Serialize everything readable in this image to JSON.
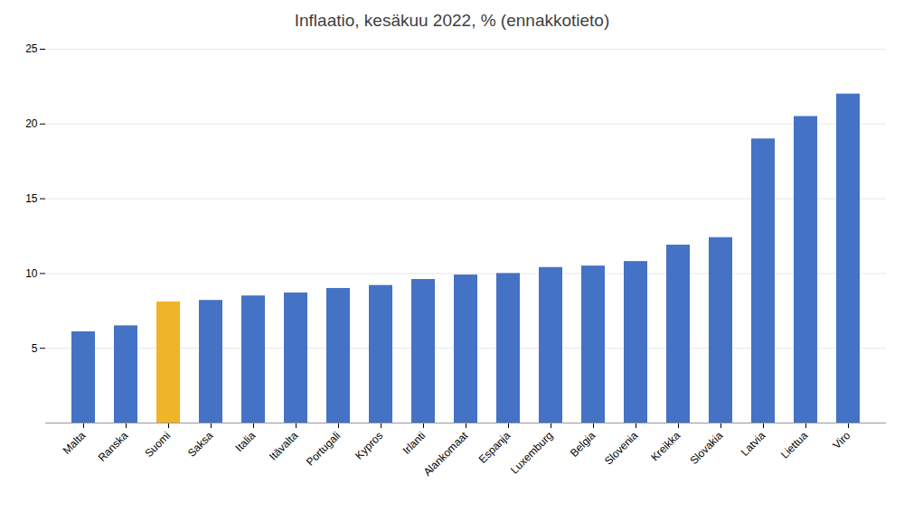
{
  "chart_data": {
    "type": "bar",
    "title": "Inflaatio, kesäkuu 2022, % (ennakkotieto)",
    "categories": [
      "Malta",
      "Ranska",
      "Suomi",
      "Saksa",
      "Italia",
      "Itävalta",
      "Portugali",
      "Kypros",
      "Irlanti",
      "Alankomaat",
      "Espanja",
      "Luxemburg",
      "Belgia",
      "Slovenia",
      "Kreikka",
      "Slovakia",
      "Latvia",
      "Liettua",
      "Viro"
    ],
    "values": [
      6.1,
      6.5,
      8.1,
      8.2,
      8.5,
      8.7,
      9.0,
      9.2,
      9.6,
      9.9,
      10.0,
      10.4,
      10.5,
      10.8,
      11.9,
      12.4,
      19.0,
      20.5,
      22.0
    ],
    "colors": [
      "#4472c4",
      "#4472c4",
      "#f0b428",
      "#4472c4",
      "#4472c4",
      "#4472c4",
      "#4472c4",
      "#4472c4",
      "#4472c4",
      "#4472c4",
      "#4472c4",
      "#4472c4",
      "#4472c4",
      "#4472c4",
      "#4472c4",
      "#4472c4",
      "#4472c4",
      "#4472c4",
      "#4472c4"
    ],
    "ylim": [
      0,
      25
    ],
    "yticks": [
      5,
      10,
      15,
      20,
      25
    ],
    "grid": true
  }
}
